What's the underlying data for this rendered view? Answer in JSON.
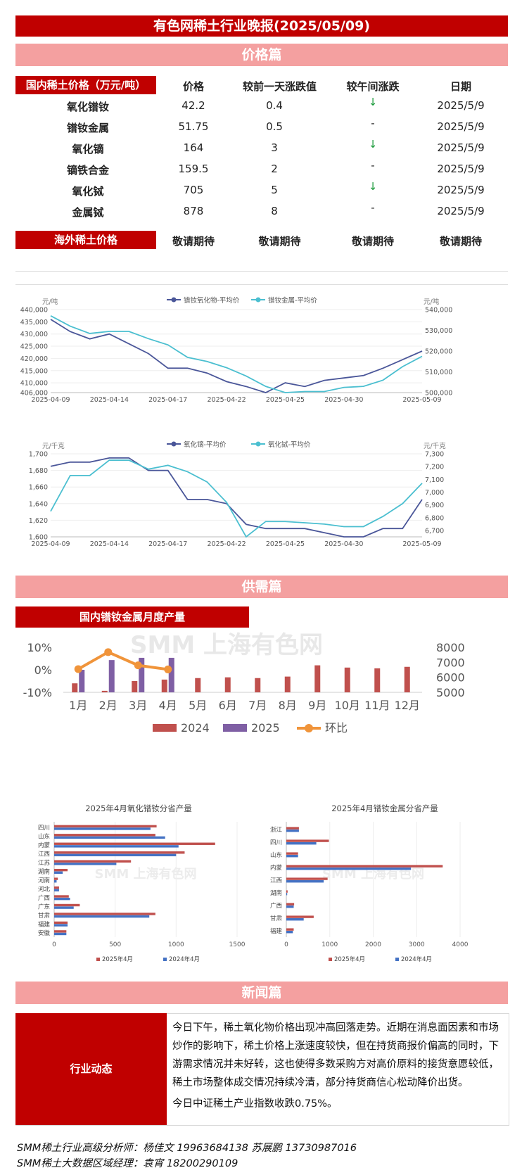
{
  "header": {
    "title": "有色网稀土行业晚报(2025/05/09)"
  },
  "sections": {
    "price": "价格篇",
    "supply": "供需篇",
    "news": "新闻篇"
  },
  "price_table": {
    "label": "国内稀土价格（万元/吨）",
    "headers": [
      "价格",
      "较前一天涨跌值",
      "较午间涨跌",
      "日期"
    ],
    "rows": [
      {
        "name": "氧化镨钕",
        "price": "42.2",
        "change": "0.4",
        "noon": "↓",
        "date": "2025/5/9"
      },
      {
        "name": "镨钕金属",
        "price": "51.75",
        "change": "0.5",
        "noon": "-",
        "date": "2025/5/9"
      },
      {
        "name": "氧化镝",
        "price": "164",
        "change": "3",
        "noon": "↓",
        "date": "2025/5/9"
      },
      {
        "name": "镝铁合金",
        "price": "159.5",
        "change": "2",
        "noon": "-",
        "date": "2025/5/9"
      },
      {
        "name": "氧化铽",
        "price": "705",
        "change": "5",
        "noon": "↓",
        "date": "2025/5/9"
      },
      {
        "name": "金属铽",
        "price": "878",
        "change": "8",
        "noon": "-",
        "date": "2025/5/9"
      }
    ],
    "overseas_label": "海外稀土价格",
    "overseas_values": [
      "敬请期待",
      "敬请期待",
      "敬请期待",
      "敬请期待"
    ]
  },
  "chart_data": [
    {
      "type": "line",
      "x": [
        "2025-04-09",
        "2025-04-10",
        "2025-04-11",
        "2025-04-14",
        "2025-04-15",
        "2025-04-16",
        "2025-04-17",
        "2025-04-18",
        "2025-04-21",
        "2025-04-22",
        "2025-04-23",
        "2025-04-24",
        "2025-04-25",
        "2025-04-28",
        "2025-04-29",
        "2025-04-30",
        "2025-05-06",
        "2025-05-07",
        "2025-05-08",
        "2025-05-09"
      ],
      "xticks": [
        "2025-04-09",
        "2025-04-14",
        "2025-04-17",
        "2025-04-22",
        "2025-04-25",
        "2025-04-30",
        "2025-05-09"
      ],
      "ylabel_left": "元/吨",
      "ylabel_right": "元/吨",
      "ylim_left": [
        406000,
        440000
      ],
      "yticks_left": [
        406000,
        410000,
        415000,
        420000,
        425000,
        430000,
        435000,
        440000
      ],
      "ylim_right": [
        500000,
        540000
      ],
      "yticks_right": [
        500000,
        510000,
        520000,
        530000,
        540000
      ],
      "series": [
        {
          "name": "镨钕氧化物-平均价",
          "axis": "left",
          "color": "#4a5699",
          "values": [
            436000,
            431000,
            428000,
            430000,
            426000,
            422000,
            416000,
            416000,
            414000,
            410500,
            408500,
            406000,
            410000,
            408500,
            411000,
            412000,
            413000,
            416000,
            419500,
            423000
          ]
        },
        {
          "name": "镨钕金属-平均价",
          "axis": "right",
          "color": "#4bbfd0",
          "values": [
            537000,
            532000,
            528500,
            529500,
            529500,
            526000,
            523000,
            517000,
            515000,
            512000,
            508000,
            503000,
            500000,
            500500,
            500500,
            502500,
            503000,
            506000,
            512500,
            517500
          ]
        }
      ],
      "legend": "top"
    },
    {
      "type": "line",
      "x": [
        "2025-04-09",
        "2025-04-10",
        "2025-04-11",
        "2025-04-14",
        "2025-04-15",
        "2025-04-16",
        "2025-04-17",
        "2025-04-18",
        "2025-04-21",
        "2025-04-22",
        "2025-04-23",
        "2025-04-24",
        "2025-04-25",
        "2025-04-28",
        "2025-04-29",
        "2025-04-30",
        "2025-05-06",
        "2025-05-07",
        "2025-05-08",
        "2025-05-09"
      ],
      "xticks": [
        "2025-04-09",
        "2025-04-14",
        "2025-04-17",
        "2025-04-22",
        "2025-04-25",
        "2025-04-30",
        "2025-05-09"
      ],
      "ylabel_left": "元/千克",
      "ylabel_right": "元/千克",
      "ylim_left": [
        1600,
        1700
      ],
      "yticks_left": [
        1600,
        1620,
        1640,
        1660,
        1680,
        1700
      ],
      "ylim_right": [
        6650,
        7300
      ],
      "yticks_right": [
        6700,
        6800,
        6900,
        7000,
        7100,
        7200,
        7300
      ],
      "series": [
        {
          "name": "氧化镝-平均价",
          "axis": "left",
          "color": "#4a5699",
          "values": [
            1685,
            1690,
            1690,
            1695,
            1695,
            1680,
            1680,
            1645,
            1645,
            1640,
            1615,
            1610,
            1610,
            1610,
            1605,
            1600,
            1600,
            1610,
            1610,
            1645
          ]
        },
        {
          "name": "氧化铽-平均价",
          "axis": "right",
          "color": "#4bbfd0",
          "values": [
            6850,
            7130,
            7130,
            7250,
            7250,
            7180,
            7210,
            7160,
            7080,
            6920,
            6650,
            6770,
            6770,
            6760,
            6750,
            6730,
            6730,
            6810,
            6910,
            7070
          ]
        }
      ],
      "legend": "top"
    },
    {
      "type": "bar",
      "title": "国内镨钕金属月度产量",
      "categories": [
        "1月",
        "2月",
        "3月",
        "4月",
        "5月",
        "6月",
        "7月",
        "8月",
        "9月",
        "10月",
        "11月",
        "12月"
      ],
      "ylim_left": [
        -0.1,
        0.1
      ],
      "yticks_left": [
        "-10%",
        "0%",
        "10%"
      ],
      "ylim_right": [
        5000,
        8000
      ],
      "yticks_right": [
        5000,
        6000,
        7000,
        8000
      ],
      "series": [
        {
          "name": "2024",
          "color": "#c0504d",
          "axis": "right",
          "values": [
            5600,
            5100,
            5750,
            5850,
            5950,
            6000,
            5950,
            6050,
            6800,
            6650,
            6600,
            6700
          ]
        },
        {
          "name": "2025",
          "color": "#7f5fa4",
          "axis": "right",
          "values": [
            6500,
            7150,
            7300,
            7300,
            null,
            null,
            null,
            null,
            null,
            null,
            null,
            null
          ]
        },
        {
          "name": "环比",
          "color": "#f0943a",
          "axis": "left",
          "type": "line",
          "values": [
            0.0033,
            0.0787,
            0.0199,
            0.0018,
            null,
            null,
            null,
            null,
            null,
            null,
            null,
            null
          ]
        }
      ],
      "legend": "bottom",
      "watermark": "SMM 上海有色网"
    },
    {
      "type": "bar",
      "orientation": "horizontal",
      "title": "2025年4月氧化镨钕分省产量",
      "categories": [
        "四川",
        "山东",
        "内蒙",
        "江西",
        "江苏",
        "湖南",
        "河南",
        "河北",
        "广西",
        "广东",
        "甘肃",
        "福建",
        "安徽"
      ],
      "xlim": [
        0,
        1500
      ],
      "xticks": [
        0,
        500,
        1000,
        1500
      ],
      "series": [
        {
          "name": "2025年4月",
          "color": "#c0504d",
          "values": [
            840,
            830,
            1320,
            1070,
            630,
            110,
            30,
            40,
            120,
            210,
            830,
            110,
            100
          ]
        },
        {
          "name": "2024年4月",
          "color": "#4472c4",
          "values": [
            790,
            910,
            1020,
            1000,
            510,
            70,
            20,
            40,
            130,
            160,
            780,
            110,
            100
          ]
        }
      ],
      "legend": "bottom"
    },
    {
      "type": "bar",
      "orientation": "horizontal",
      "title": "2025年4月镨钕金属分省产量",
      "categories": [
        "浙江",
        "四川",
        "山东",
        "内蒙",
        "江西",
        "湖南",
        "广西",
        "甘肃",
        "福建"
      ],
      "xlim": [
        0,
        4000
      ],
      "xticks": [
        0,
        1000,
        2000,
        3000,
        4000
      ],
      "series": [
        {
          "name": "2025年4月",
          "color": "#c0504d",
          "values": [
            290,
            980,
            270,
            3600,
            950,
            30,
            180,
            630,
            170
          ]
        },
        {
          "name": "2024年4月",
          "color": "#4472c4",
          "values": [
            290,
            690,
            270,
            2870,
            860,
            20,
            170,
            400,
            150
          ]
        }
      ],
      "legend": "bottom"
    }
  ],
  "news": {
    "label": "行业动态",
    "paragraph1": "今日下午，稀土氧化物价格出现冲高回落走势。近期在消息面因素和市场炒作的影响下，稀土价格上涨速度较快，但在持货商报价偏高的同时，下游需求情况并未好转，这也使得多数采购方对高价原料的接货意愿较低，稀土市场整体成交情况持续冷清，部分持货商信心松动降价出货。",
    "paragraph2": "今日中证稀土产业指数收跌0.75%。"
  },
  "footer": {
    "line1": "SMM稀土行业高级分析师：杨佳文  19963684138   苏展鹏  13730987016",
    "line2": "SMM稀土大数据区域经理：袁宵  18200290109"
  },
  "colors": {
    "header_red": "#c00000",
    "section_pink": "#f4a0a0",
    "down_green": "#1a9a3a"
  }
}
